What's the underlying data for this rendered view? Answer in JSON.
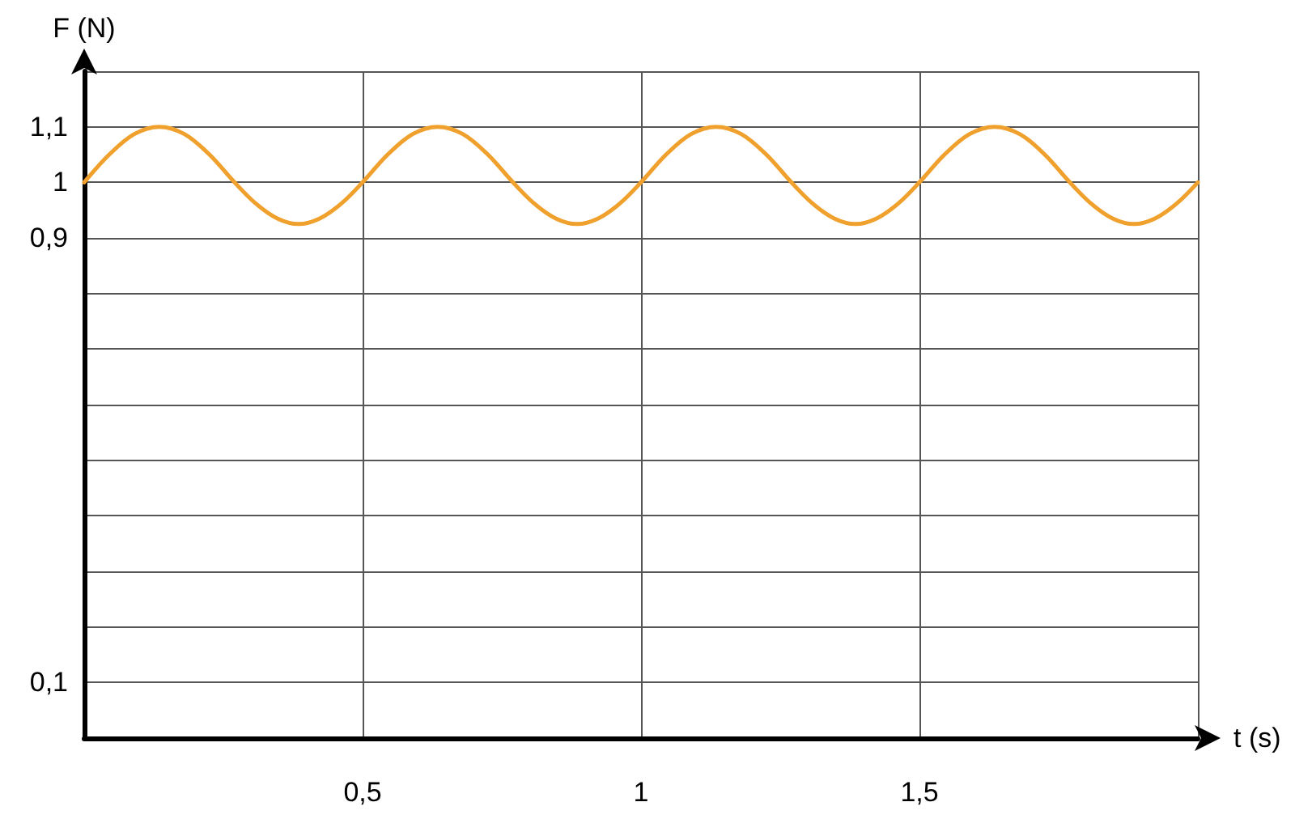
{
  "chart_data": {
    "type": "line",
    "xlabel": "t (s)",
    "ylabel": "F (N)",
    "xlim": [
      0,
      2
    ],
    "ylim": [
      0,
      1.2
    ],
    "xticks": [
      {
        "value": 0.5,
        "label": "0,5"
      },
      1,
      {
        "value": 1.5,
        "label": "1,5"
      },
      {
        "value": 2,
        "label": null
      }
    ],
    "yticks": [
      {
        "value": 0.1,
        "label": "0,1"
      },
      {
        "value": 0.2,
        "label": null
      },
      {
        "value": 0.3,
        "label": null
      },
      {
        "value": 0.4,
        "label": null
      },
      {
        "value": 0.5,
        "label": null
      },
      {
        "value": 0.6,
        "label": null
      },
      {
        "value": 0.7,
        "label": null
      },
      {
        "value": 0.8,
        "label": null
      },
      {
        "value": 0.9,
        "label": "0,9"
      },
      1,
      {
        "value": 1.1,
        "label": "1,1"
      },
      {
        "value": 1.2,
        "label": null
      }
    ],
    "grid": true,
    "marker": "none",
    "line_style": "solid",
    "series": [
      {
        "color": "#f0a02c",
        "x": [
          0,
          0.045,
          0.09,
          0.135,
          0.18,
          0.225,
          0.27,
          0.308,
          0.347,
          0.385,
          0.423,
          0.462,
          0.5,
          0.545,
          0.59,
          0.635,
          0.68,
          0.725,
          0.77,
          0.808,
          0.847,
          0.885,
          0.923,
          0.962,
          1,
          1.045,
          1.09,
          1.135,
          1.18,
          1.225,
          1.27,
          1.308,
          1.347,
          1.385,
          1.423,
          1.462,
          1.5,
          1.545,
          1.59,
          1.635,
          1.68,
          1.725,
          1.77,
          1.808,
          1.847,
          1.885,
          1.923,
          1.962,
          2
        ],
        "values": [
          1,
          1.05,
          1.087,
          1.1,
          1.087,
          1.05,
          1,
          0.962,
          0.935,
          0.925,
          0.935,
          0.962,
          1,
          1.05,
          1.087,
          1.1,
          1.087,
          1.05,
          1,
          0.962,
          0.935,
          0.925,
          0.935,
          0.962,
          1,
          1.05,
          1.087,
          1.1,
          1.087,
          1.05,
          1,
          0.962,
          0.935,
          0.925,
          0.935,
          0.962,
          1,
          1.05,
          1.087,
          1.1,
          1.087,
          1.05,
          1,
          0.962,
          0.935,
          0.925,
          0.935,
          0.962,
          1
        ]
      }
    ]
  }
}
